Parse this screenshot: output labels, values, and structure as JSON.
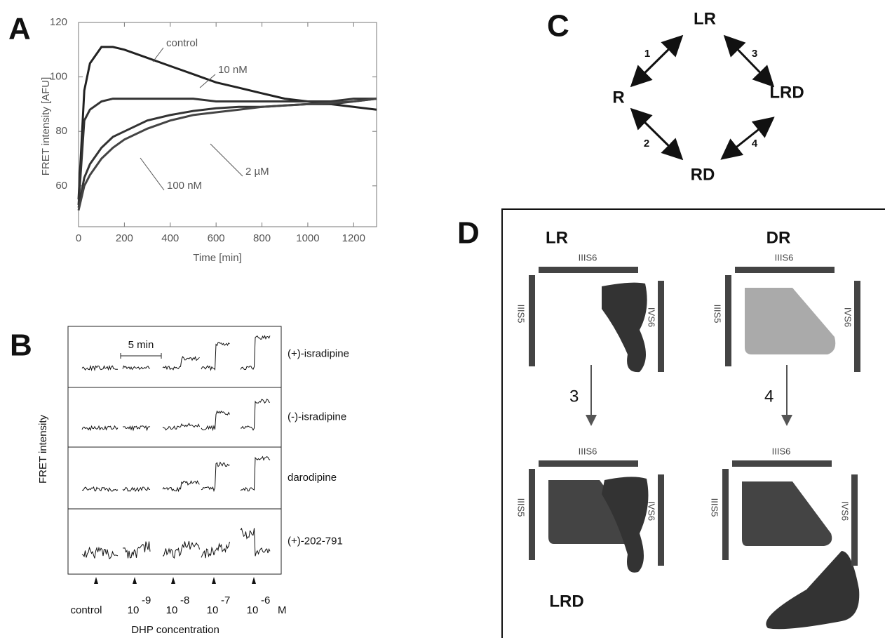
{
  "chart_data": {
    "type": "line",
    "panel_label": "A",
    "xlabel": "Time [min]",
    "ylabel": "FRET intensity [AFU]",
    "xlim": [
      0,
      1300
    ],
    "ylim": [
      45,
      120
    ],
    "xticks": [
      0,
      200,
      400,
      600,
      800,
      1000,
      1200
    ],
    "yticks": [
      60,
      80,
      100,
      120
    ],
    "x": [
      0,
      25,
      50,
      100,
      150,
      200,
      300,
      400,
      500,
      600,
      700,
      800,
      900,
      1000,
      1100,
      1200,
      1300
    ],
    "series": [
      {
        "name": "control",
        "color": "#222",
        "values": [
          55,
          95,
          105,
          111,
          111,
          110,
          107,
          104,
          101,
          98,
          96,
          94,
          92,
          91,
          90,
          89,
          88
        ]
      },
      {
        "name": "10 nM",
        "color": "#333",
        "values": [
          53,
          84,
          88,
          91,
          92,
          92,
          92,
          92,
          92,
          91,
          91,
          91,
          91,
          91,
          91,
          92,
          92
        ]
      },
      {
        "name": "100 nM",
        "color": "#333",
        "values": [
          52,
          63,
          68,
          74,
          78,
          80,
          84,
          86,
          87.5,
          88.5,
          89,
          89,
          89.5,
          90,
          90,
          91,
          92
        ]
      },
      {
        "name": "2 µM",
        "color": "#444",
        "values": [
          51,
          60,
          64,
          70,
          74,
          77,
          81,
          84,
          86,
          87,
          88,
          89,
          89.5,
          90,
          90.5,
          91,
          92
        ]
      }
    ]
  },
  "panel_b": {
    "label": "B",
    "scale_label": "5 min",
    "ylabel": "FRET intensity",
    "xlabel": "DHP concentration",
    "conc_labels": [
      "control",
      "10",
      "10",
      "10",
      "10"
    ],
    "exponents": [
      "-9",
      "-8",
      "-7",
      "-6"
    ],
    "unit": "M",
    "rows": [
      {
        "name": "(+)-isradipine",
        "steps": [
          0,
          0,
          0.3,
          0.8,
          1.0
        ]
      },
      {
        "name": "(-)-isradipine",
        "steps": [
          0,
          0,
          0.1,
          0.5,
          0.9
        ]
      },
      {
        "name": "darodipine",
        "steps": [
          0,
          0,
          0.2,
          0.8,
          1.0
        ]
      },
      {
        "name": "(+)-202-791",
        "steps": [
          0,
          0.2,
          0.2,
          0.2,
          -0.6
        ]
      }
    ]
  },
  "panel_c": {
    "label": "C",
    "nodes": [
      "LR",
      "R",
      "LRD",
      "RD"
    ],
    "edges": [
      "1",
      "3",
      "2",
      "4"
    ]
  },
  "panel_d": {
    "label": "D",
    "top_left": "LR",
    "top_right": "DR",
    "bottom_left": "LRD",
    "segment_top": "IIIS6",
    "segment_left": "IIIS5",
    "segment_right": "IVS6",
    "arrow_left": "3",
    "arrow_right": "4"
  }
}
